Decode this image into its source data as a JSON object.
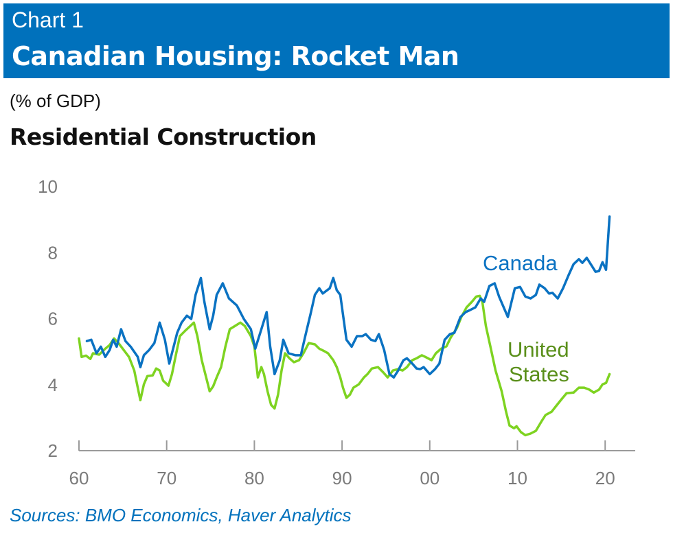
{
  "header": {
    "chart_number": "Chart 1",
    "title": "Canadian Housing: Rocket Man"
  },
  "source": "Sources: BMO Economics, Haver Analytics",
  "colors": {
    "header_bg": "#0071bc",
    "canada": "#0a72c2",
    "united_states": "#7ed321",
    "us_label": "#5a8f1a"
  },
  "chart_data": {
    "type": "line",
    "title": "Residential Construction",
    "ylabel": "(% of GDP)",
    "xlabel": "",
    "xlim": [
      1960,
      2023
    ],
    "ylim": [
      2,
      10
    ],
    "x_ticks": [
      1960,
      1970,
      1980,
      1990,
      2000,
      2010,
      2020
    ],
    "x_tick_labels": [
      "60",
      "70",
      "80",
      "90",
      "00",
      "10",
      "20"
    ],
    "y_ticks": [
      2,
      4,
      6,
      8,
      10
    ],
    "y_tick_labels": [
      "2",
      "4",
      "6",
      "8",
      "10"
    ],
    "grid": false,
    "legend": "inline labels",
    "series": [
      {
        "name": "Canada",
        "color": "#0a72c2",
        "label_lines": [
          "Canada"
        ],
        "points": [
          [
            1960.9,
            5.32
          ],
          [
            1961.4,
            5.36
          ],
          [
            1962,
            4.95
          ],
          [
            1962.5,
            5.15
          ],
          [
            1963,
            4.84
          ],
          [
            1963.5,
            5.05
          ],
          [
            1963.9,
            5.36
          ],
          [
            1964.3,
            5.15
          ],
          [
            1964.8,
            5.68
          ],
          [
            1965.3,
            5.32
          ],
          [
            1965.9,
            5.15
          ],
          [
            1966.7,
            4.84
          ],
          [
            1967,
            4.53
          ],
          [
            1967.4,
            4.89
          ],
          [
            1968,
            5.05
          ],
          [
            1968.6,
            5.26
          ],
          [
            1969.2,
            5.88
          ],
          [
            1969.8,
            5.36
          ],
          [
            1970.3,
            4.64
          ],
          [
            1970.7,
            5.05
          ],
          [
            1971.2,
            5.57
          ],
          [
            1971.7,
            5.88
          ],
          [
            1972.3,
            6.09
          ],
          [
            1972.8,
            5.99
          ],
          [
            1973.3,
            6.72
          ],
          [
            1973.9,
            7.23
          ],
          [
            1974.3,
            6.51
          ],
          [
            1974.9,
            5.68
          ],
          [
            1975.3,
            6.09
          ],
          [
            1975.7,
            6.72
          ],
          [
            1976.4,
            7.07
          ],
          [
            1977.1,
            6.61
          ],
          [
            1978,
            6.4
          ],
          [
            1978.8,
            5.99
          ],
          [
            1979.6,
            5.68
          ],
          [
            1980.1,
            5.09
          ],
          [
            1980.8,
            5.68
          ],
          [
            1981.4,
            6.2
          ],
          [
            1981.8,
            5.16
          ],
          [
            1982.3,
            4.32
          ],
          [
            1982.9,
            4.74
          ],
          [
            1983.3,
            5.36
          ],
          [
            1983.9,
            4.95
          ],
          [
            1984.7,
            4.89
          ],
          [
            1985.3,
            4.89
          ],
          [
            1985.8,
            5.47
          ],
          [
            1986.4,
            6.13
          ],
          [
            1986.9,
            6.72
          ],
          [
            1987.4,
            6.92
          ],
          [
            1987.8,
            6.76
          ],
          [
            1988.6,
            6.92
          ],
          [
            1989,
            7.23
          ],
          [
            1989.4,
            6.86
          ],
          [
            1989.8,
            6.72
          ],
          [
            1990.5,
            5.36
          ],
          [
            1991.1,
            5.15
          ],
          [
            1991.7,
            5.47
          ],
          [
            1992.3,
            5.47
          ],
          [
            1992.7,
            5.53
          ],
          [
            1993.3,
            5.36
          ],
          [
            1993.8,
            5.32
          ],
          [
            1994.2,
            5.53
          ],
          [
            1994.8,
            5.05
          ],
          [
            1995.4,
            4.32
          ],
          [
            1995.9,
            4.22
          ],
          [
            1996.4,
            4.43
          ],
          [
            1997,
            4.74
          ],
          [
            1997.4,
            4.8
          ],
          [
            1998,
            4.64
          ],
          [
            1998.5,
            4.49
          ],
          [
            1998.9,
            4.47
          ],
          [
            1999.3,
            4.53
          ],
          [
            2000,
            4.32
          ],
          [
            2000.6,
            4.47
          ],
          [
            2001.1,
            4.64
          ],
          [
            2001.7,
            5.36
          ],
          [
            2002.3,
            5.53
          ],
          [
            2002.8,
            5.57
          ],
          [
            2003.5,
            6.05
          ],
          [
            2004.1,
            6.2
          ],
          [
            2004.6,
            6.26
          ],
          [
            2005.2,
            6.34
          ],
          [
            2005.8,
            6.61
          ],
          [
            2006.2,
            6.51
          ],
          [
            2006.8,
            6.99
          ],
          [
            2007.4,
            7.07
          ],
          [
            2007.9,
            6.67
          ],
          [
            2008.4,
            6.36
          ],
          [
            2008.9,
            6.05
          ],
          [
            2009.7,
            6.92
          ],
          [
            2010.3,
            6.96
          ],
          [
            2010.9,
            6.67
          ],
          [
            2011.5,
            6.61
          ],
          [
            2012.1,
            6.72
          ],
          [
            2012.5,
            7.03
          ],
          [
            2013.1,
            6.92
          ],
          [
            2013.6,
            6.76
          ],
          [
            2014,
            6.78
          ],
          [
            2014.6,
            6.61
          ],
          [
            2015.2,
            6.92
          ],
          [
            2015.8,
            7.3
          ],
          [
            2016.4,
            7.65
          ],
          [
            2017,
            7.8
          ],
          [
            2017.4,
            7.69
          ],
          [
            2017.9,
            7.84
          ],
          [
            2018.6,
            7.55
          ],
          [
            2018.9,
            7.42
          ],
          [
            2019.3,
            7.44
          ],
          [
            2019.7,
            7.71
          ],
          [
            2020.1,
            7.48
          ],
          [
            2020.5,
            9.09
          ]
        ]
      },
      {
        "name": "United States",
        "color": "#7ed321",
        "label_lines": [
          "United",
          "States"
        ],
        "points": [
          [
            1960,
            5.4
          ],
          [
            1960.3,
            4.84
          ],
          [
            1960.8,
            4.88
          ],
          [
            1961.3,
            4.78
          ],
          [
            1961.6,
            4.95
          ],
          [
            1962.3,
            4.91
          ],
          [
            1963,
            5.09
          ],
          [
            1963.5,
            5.2
          ],
          [
            1964,
            5.4
          ],
          [
            1964.5,
            5.26
          ],
          [
            1965.1,
            5.05
          ],
          [
            1965.7,
            4.84
          ],
          [
            1966.3,
            4.43
          ],
          [
            1966.7,
            3.91
          ],
          [
            1967,
            3.53
          ],
          [
            1967.4,
            4.01
          ],
          [
            1967.8,
            4.26
          ],
          [
            1968.4,
            4.28
          ],
          [
            1968.8,
            4.49
          ],
          [
            1969.2,
            4.43
          ],
          [
            1969.6,
            4.12
          ],
          [
            1970.2,
            3.97
          ],
          [
            1970.6,
            4.32
          ],
          [
            1971,
            4.84
          ],
          [
            1971.5,
            5.47
          ],
          [
            1972.1,
            5.63
          ],
          [
            1972.7,
            5.78
          ],
          [
            1973.1,
            5.88
          ],
          [
            1973.5,
            5.47
          ],
          [
            1974,
            4.74
          ],
          [
            1974.5,
            4.22
          ],
          [
            1974.9,
            3.8
          ],
          [
            1975.3,
            3.95
          ],
          [
            1975.7,
            4.22
          ],
          [
            1976.2,
            4.53
          ],
          [
            1976.7,
            5.16
          ],
          [
            1977.2,
            5.68
          ],
          [
            1977.8,
            5.78
          ],
          [
            1978.4,
            5.88
          ],
          [
            1978.9,
            5.78
          ],
          [
            1979.6,
            5.47
          ],
          [
            1980,
            5.16
          ],
          [
            1980.4,
            4.22
          ],
          [
            1980.8,
            4.53
          ],
          [
            1981.1,
            4.32
          ],
          [
            1981.5,
            3.8
          ],
          [
            1981.9,
            3.39
          ],
          [
            1982.3,
            3.28
          ],
          [
            1982.7,
            3.7
          ],
          [
            1983.1,
            4.43
          ],
          [
            1983.5,
            4.95
          ],
          [
            1984,
            4.8
          ],
          [
            1984.5,
            4.68
          ],
          [
            1985.1,
            4.74
          ],
          [
            1985.6,
            4.95
          ],
          [
            1986.2,
            5.26
          ],
          [
            1986.9,
            5.22
          ],
          [
            1987.4,
            5.09
          ],
          [
            1988,
            5.01
          ],
          [
            1988.4,
            4.95
          ],
          [
            1989,
            4.74
          ],
          [
            1989.4,
            4.53
          ],
          [
            1989.8,
            4.22
          ],
          [
            1990.1,
            3.91
          ],
          [
            1990.5,
            3.6
          ],
          [
            1990.9,
            3.7
          ],
          [
            1991.3,
            3.91
          ],
          [
            1991.9,
            4.01
          ],
          [
            1992.5,
            4.22
          ],
          [
            1992.9,
            4.32
          ],
          [
            1993.4,
            4.49
          ],
          [
            1994.1,
            4.53
          ],
          [
            1994.7,
            4.37
          ],
          [
            1995.2,
            4.22
          ],
          [
            1995.8,
            4.43
          ],
          [
            1996.4,
            4.47
          ],
          [
            1996.9,
            4.43
          ],
          [
            1997.4,
            4.53
          ],
          [
            1998,
            4.74
          ],
          [
            1998.5,
            4.8
          ],
          [
            1999.1,
            4.89
          ],
          [
            1999.5,
            4.84
          ],
          [
            2000.2,
            4.74
          ],
          [
            2000.7,
            4.95
          ],
          [
            2001.3,
            5.09
          ],
          [
            2001.9,
            5.16
          ],
          [
            2002.4,
            5.43
          ],
          [
            2003.1,
            5.72
          ],
          [
            2003.6,
            6.05
          ],
          [
            2004.2,
            6.34
          ],
          [
            2004.8,
            6.51
          ],
          [
            2005.3,
            6.67
          ],
          [
            2005.7,
            6.69
          ],
          [
            2006,
            6.51
          ],
          [
            2006.4,
            5.78
          ],
          [
            2007,
            5.05
          ],
          [
            2007.5,
            4.43
          ],
          [
            2008.2,
            3.8
          ],
          [
            2008.7,
            3.18
          ],
          [
            2009.1,
            2.76
          ],
          [
            2009.6,
            2.68
          ],
          [
            2009.9,
            2.74
          ],
          [
            2010.4,
            2.56
          ],
          [
            2010.9,
            2.47
          ],
          [
            2011.5,
            2.52
          ],
          [
            2012.1,
            2.6
          ],
          [
            2012.7,
            2.87
          ],
          [
            2013.2,
            3.08
          ],
          [
            2013.9,
            3.18
          ],
          [
            2014.4,
            3.35
          ],
          [
            2015,
            3.55
          ],
          [
            2015.6,
            3.74
          ],
          [
            2016.4,
            3.76
          ],
          [
            2017,
            3.91
          ],
          [
            2017.6,
            3.91
          ],
          [
            2018.2,
            3.85
          ],
          [
            2018.7,
            3.76
          ],
          [
            2019.3,
            3.85
          ],
          [
            2019.7,
            4.01
          ],
          [
            2020.1,
            4.05
          ],
          [
            2020.5,
            4.32
          ]
        ]
      }
    ]
  }
}
